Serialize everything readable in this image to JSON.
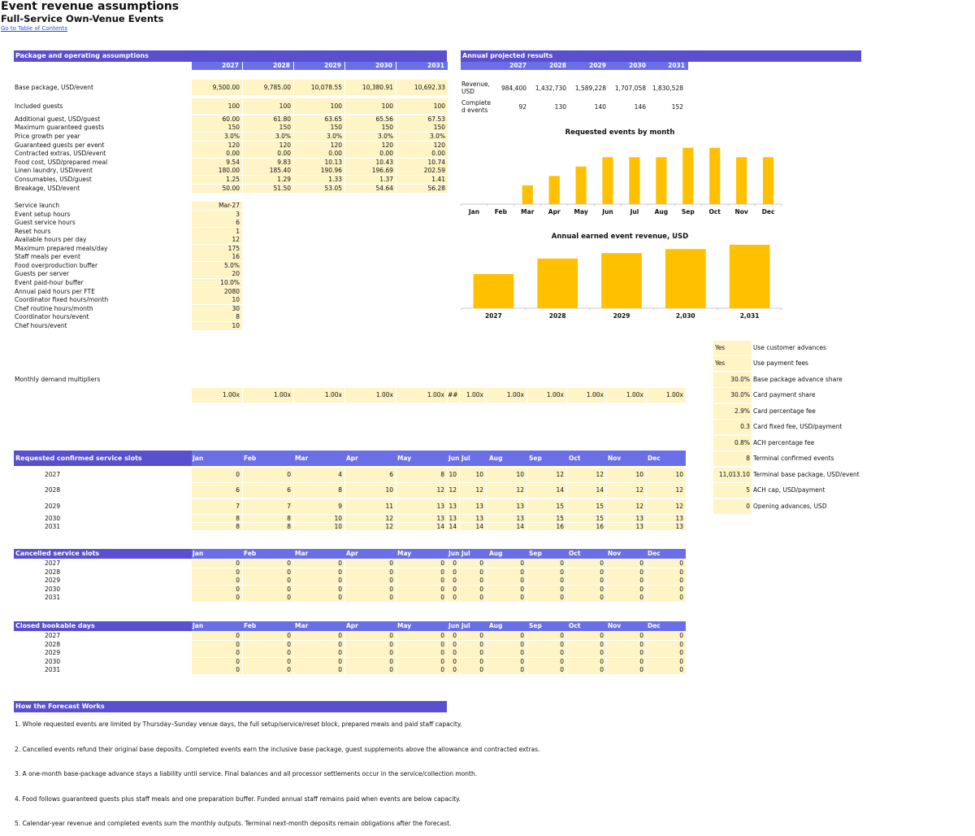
{
  "header": {
    "title": "Event revenue assumptions",
    "subtitle": "Full-Service Own-Venue Events",
    "toc_link": "Go to  Table of Contents"
  },
  "assumptions": {
    "section_title": "Package and operating assumptions",
    "years": [
      "2027",
      "2028",
      "2029",
      "2030",
      "2031"
    ],
    "rows": [
      {
        "label": "Base package, USD/event",
        "values": [
          "9,500.00",
          "9,785.00",
          "10,078.55",
          "10,380.91",
          "10,692.33"
        ]
      },
      {
        "label": "Included guests",
        "values": [
          "100",
          "100",
          "100",
          "100",
          "100"
        ]
      },
      {
        "label": "Additional guest, USD/guest",
        "values": [
          "60.00",
          "61.80",
          "63.65",
          "65.56",
          "67.53"
        ]
      },
      {
        "label": "Maximum guaranteed guests",
        "values": [
          "150",
          "150",
          "150",
          "150",
          "150"
        ]
      },
      {
        "label": "Price growth per year",
        "values": [
          "3.0%",
          "3.0%",
          "3.0%",
          "3.0%",
          "3.0%"
        ]
      },
      {
        "label": "Guaranteed guests per event",
        "values": [
          "120",
          "120",
          "120",
          "120",
          "120"
        ]
      },
      {
        "label": "Contracted extras, USD/event",
        "values": [
          "0.00",
          "0.00",
          "0.00",
          "0.00",
          "0.00"
        ]
      },
      {
        "label": "Food cost, USD/prepared meal",
        "values": [
          "9.54",
          "9.83",
          "10.13",
          "10.43",
          "10.74"
        ]
      },
      {
        "label": "Linen laundry, USD/event",
        "values": [
          "180.00",
          "185.40",
          "190.96",
          "196.69",
          "202.59"
        ]
      },
      {
        "label": "Consumables, USD/guest",
        "values": [
          "1.25",
          "1.29",
          "1.33",
          "1.37",
          "1.41"
        ]
      },
      {
        "label": "Breakage, USD/event",
        "values": [
          "50.00",
          "51.50",
          "53.05",
          "54.64",
          "56.28"
        ]
      }
    ],
    "single_rows": [
      {
        "label": "Service launch",
        "value": "Mar-27"
      },
      {
        "label": "Event setup hours",
        "value": "3"
      },
      {
        "label": "Guest service hours",
        "value": "6"
      },
      {
        "label": "Reset hours",
        "value": "1"
      },
      {
        "label": "Available hours per day",
        "value": "12"
      },
      {
        "label": "Maximum prepared meals/day",
        "value": "175"
      },
      {
        "label": "Staff meals per event",
        "value": "16"
      },
      {
        "label": "Food overproduction buffer",
        "value": "5.0%"
      },
      {
        "label": "Guests per server",
        "value": "20"
      },
      {
        "label": "Event paid-hour buffer",
        "value": "10.0%"
      },
      {
        "label": "Annual paid hours per FTE",
        "value": "2080"
      },
      {
        "label": "Coordinator fixed hours/month",
        "value": "10"
      },
      {
        "label": "Chef routine hours/month",
        "value": "30"
      },
      {
        "label": "Coordinator hours/event",
        "value": "8"
      },
      {
        "label": "Chef hours/event",
        "value": "10"
      }
    ],
    "multipliers_label": "Monthly demand multipliers",
    "multipliers": [
      "1.00x",
      "1.00x",
      "1.00x",
      "1.00x",
      "1.00x",
      "##",
      "1.00x",
      "1.00x",
      "1.00x",
      "1.00x",
      "1.00x",
      "1.00x"
    ]
  },
  "results": {
    "section_title": "Annual projected results",
    "years": [
      "2027",
      "2028",
      "2029",
      "2030",
      "2031"
    ],
    "rows": [
      {
        "label_line1": "Revenue,",
        "label_line2": "USD",
        "values": [
          "984,400",
          "1,432,730",
          "1,589,228",
          "1,707,058",
          "1,830,528"
        ]
      },
      {
        "label_line1": "Complete",
        "label_line2": "d events",
        "values": [
          "92",
          "130",
          "140",
          "146",
          "152"
        ]
      }
    ]
  },
  "chart_data": [
    {
      "type": "bar",
      "title": "Requested events by month",
      "categories": [
        "Jan",
        "Feb",
        "Mar",
        "Apr",
        "May",
        "Jun",
        "Jul",
        "Aug",
        "Sep",
        "Oct",
        "Nov",
        "Dec"
      ],
      "values": [
        0,
        0,
        4,
        6,
        8,
        10,
        10,
        10,
        12,
        12,
        10,
        10
      ],
      "ylim": [
        0,
        13
      ],
      "color": "#ffc000",
      "grid": false
    },
    {
      "type": "bar",
      "title": "Annual earned event revenue, USD",
      "categories": [
        "2027",
        "2028",
        "2029",
        "2,030",
        "2,031"
      ],
      "values": [
        984400,
        1432730,
        1589228,
        1707058,
        1830528
      ],
      "ylim": [
        0,
        1900000
      ],
      "color": "#ffc000",
      "grid": false
    }
  ],
  "side_settings": [
    {
      "value": "Yes",
      "label": "Use customer advances",
      "align": "left"
    },
    {
      "value": "Yes",
      "label": "Use payment fees",
      "align": "left"
    },
    {
      "value": "30.0%",
      "label": "Base package advance share",
      "align": "right"
    },
    {
      "value": "30.0%",
      "label": "Card payment share",
      "align": "right"
    },
    {
      "value": "2.9%",
      "label": "Card percentage fee",
      "align": "right"
    },
    {
      "value": "0.3",
      "label": "Card fixed fee, USD/payment",
      "align": "right"
    },
    {
      "value": "0.8%",
      "label": "ACH percentage fee",
      "align": "right"
    },
    {
      "value": "8",
      "label": "Terminal confirmed events",
      "align": "right"
    },
    {
      "value": "11,013.10",
      "label": "Terminal base package, USD/event",
      "align": "right"
    },
    {
      "value": "5",
      "label": "ACH cap, USD/payment",
      "align": "right"
    },
    {
      "value": "0",
      "label": "Opening advances, USD",
      "align": "right"
    }
  ],
  "months": [
    "Jan",
    "Feb",
    "Mar",
    "Apr",
    "May",
    "Jun",
    "Jul",
    "Aug",
    "Sep",
    "Oct",
    "Nov",
    "Dec"
  ],
  "requested": {
    "section_title": "Requested confirmed service slots",
    "rows": [
      {
        "year": "2027",
        "values": [
          "0",
          "0",
          "4",
          "6",
          "8",
          "10",
          "10",
          "10",
          "12",
          "12",
          "10",
          "10"
        ]
      },
      {
        "year": "2028",
        "values": [
          "6",
          "6",
          "8",
          "10",
          "12",
          "12",
          "12",
          "12",
          "14",
          "14",
          "12",
          "12"
        ]
      },
      {
        "year": "2029",
        "values": [
          "7",
          "7",
          "9",
          "11",
          "13",
          "13",
          "13",
          "13",
          "15",
          "15",
          "12",
          "12"
        ]
      },
      {
        "year": "2030",
        "values": [
          "8",
          "8",
          "10",
          "12",
          "13",
          "13",
          "13",
          "13",
          "15",
          "15",
          "13",
          "13"
        ]
      },
      {
        "year": "2031",
        "values": [
          "8",
          "8",
          "10",
          "12",
          "14",
          "14",
          "14",
          "14",
          "16",
          "16",
          "13",
          "13"
        ]
      }
    ]
  },
  "cancelled": {
    "section_title": "Cancelled service slots",
    "rows": [
      {
        "year": "2027",
        "values": [
          "0",
          "0",
          "0",
          "0",
          "0",
          "0",
          "0",
          "0",
          "0",
          "0",
          "0",
          "0"
        ]
      },
      {
        "year": "2028",
        "values": [
          "0",
          "0",
          "0",
          "0",
          "0",
          "0",
          "0",
          "0",
          "0",
          "0",
          "0",
          "0"
        ]
      },
      {
        "year": "2029",
        "values": [
          "0",
          "0",
          "0",
          "0",
          "0",
          "0",
          "0",
          "0",
          "0",
          "0",
          "0",
          "0"
        ]
      },
      {
        "year": "2030",
        "values": [
          "0",
          "0",
          "0",
          "0",
          "0",
          "0",
          "0",
          "0",
          "0",
          "0",
          "0",
          "0"
        ]
      },
      {
        "year": "2031",
        "values": [
          "0",
          "0",
          "0",
          "0",
          "0",
          "0",
          "0",
          "0",
          "0",
          "0",
          "0",
          "0"
        ]
      }
    ]
  },
  "closed": {
    "section_title": "Closed bookable days",
    "rows": [
      {
        "year": "2027",
        "values": [
          "0",
          "0",
          "0",
          "0",
          "0",
          "0",
          "0",
          "0",
          "0",
          "0",
          "0",
          "0"
        ]
      },
      {
        "year": "2028",
        "values": [
          "0",
          "0",
          "0",
          "0",
          "0",
          "0",
          "0",
          "0",
          "0",
          "0",
          "0",
          "0"
        ]
      },
      {
        "year": "2029",
        "values": [
          "0",
          "0",
          "0",
          "0",
          "0",
          "0",
          "0",
          "0",
          "0",
          "0",
          "0",
          "0"
        ]
      },
      {
        "year": "2030",
        "values": [
          "0",
          "0",
          "0",
          "0",
          "0",
          "0",
          "0",
          "0",
          "0",
          "0",
          "0",
          "0"
        ]
      },
      {
        "year": "2031",
        "values": [
          "0",
          "0",
          "0",
          "0",
          "0",
          "0",
          "0",
          "0",
          "0",
          "0",
          "0",
          "0"
        ]
      }
    ]
  },
  "how": {
    "section_title": "How the Forecast Works",
    "notes": [
      "1. Whole requested events are limited by Thursday–Sunday venue days, the full setup/service/reset block, prepared meals and paid staff capacity.",
      "2. Cancelled events refund their original base deposits. Completed events earn the inclusive base package, guest supplements above the allowance and contracted extras.",
      "3. A one-month base-package advance stays a liability until service. Final balances and all processor settlements occur in the service/collection month.",
      "4. Food follows guaranteed guests plus staff meals and one preparation buffer. Funded annual staff remains paid when events are below capacity.",
      "5. Calendar-year revenue and completed events sum the monthly outputs. Terminal next-month deposits remain obligations after the forecast."
    ]
  }
}
